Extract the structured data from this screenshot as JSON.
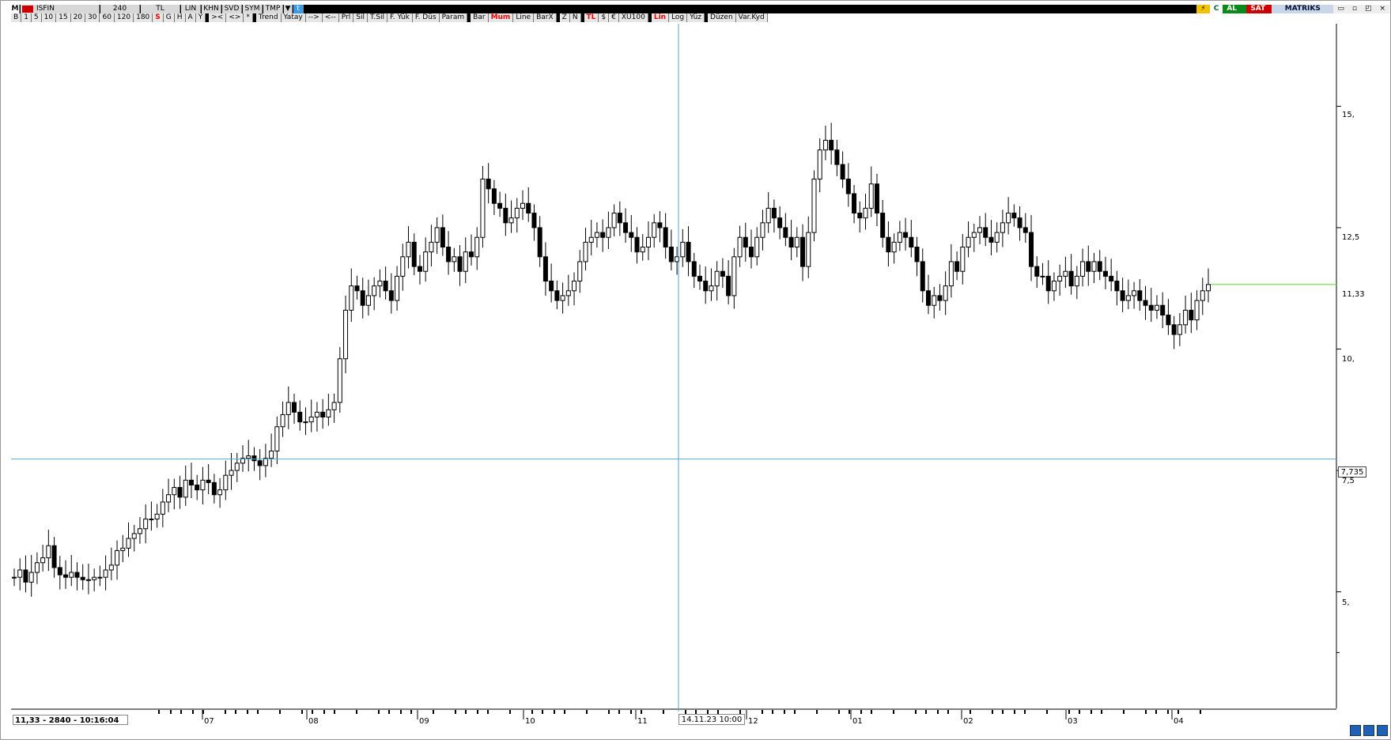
{
  "titlebar": {
    "symbol": "ISFIN",
    "period": "240",
    "currency": "TL",
    "mode": "LIN",
    "btn_khn": "KHN",
    "btn_svd": "SVD",
    "btn_sym": "SYM",
    "btn_tmp": "TMP",
    "btn_m": "M",
    "al": "AL",
    "sat": "SAT",
    "brand": "MATRIKS",
    "c": "C"
  },
  "toolbar": {
    "items": [
      "B",
      "1",
      "5",
      "10",
      "15",
      "20",
      "30",
      "60",
      "120",
      "180",
      "S",
      "G",
      "H",
      "A",
      "Y",
      "><",
      "<>",
      "*",
      "Trend",
      "Yatay",
      "-->",
      "<--",
      "Prl",
      "Sil",
      "T.Sil",
      "F. Yük",
      "F. Düs",
      "Param",
      "Bar",
      "Mum",
      "Line",
      "BarX",
      "Z",
      "N",
      "TL",
      "$",
      "€",
      "XU100",
      "Lin",
      "Log",
      "Yüz",
      "Düzen",
      "Var.Kyd"
    ],
    "highlighted": [
      "S",
      "Mum",
      "TL",
      "Lin"
    ]
  },
  "status": {
    "info": "11,33 - 2840 - 10:16:04",
    "crosshair_time": "14.11.23 10:00",
    "crosshair_price": "7,735"
  },
  "colors": {
    "crosshair": "#5aa6d6",
    "last_price_line": "#66dd44",
    "candle": "#000000"
  },
  "chart_data": {
    "type": "candlestick",
    "y_axis_labels": [
      "15,",
      "12,5",
      "11,33",
      "10,",
      "7,5",
      "5,"
    ],
    "y_ticks": [
      15,
      12.5,
      10,
      7.5,
      5
    ],
    "ylim": [
      2.6,
      16.7
    ],
    "x_axis_labels": [
      "07",
      "08",
      "09",
      "10",
      "11",
      "12",
      "01",
      "02",
      "03",
      "04"
    ],
    "last_price": 11.33,
    "crosshair_price": 7.735,
    "closes": [
      5.3,
      5.45,
      5.2,
      5.4,
      5.6,
      5.7,
      5.95,
      5.5,
      5.35,
      5.3,
      5.4,
      5.3,
      5.25,
      5.25,
      5.3,
      5.3,
      5.45,
      5.55,
      5.85,
      5.9,
      6.1,
      6.2,
      6.3,
      6.5,
      6.5,
      6.6,
      6.85,
      7.0,
      7.15,
      6.95,
      7.3,
      7.2,
      7.1,
      7.3,
      7.25,
      7.0,
      7.1,
      7.4,
      7.5,
      7.65,
      7.75,
      7.8,
      7.7,
      7.6,
      7.75,
      7.9,
      8.4,
      8.65,
      8.9,
      8.7,
      8.5,
      8.5,
      8.6,
      8.7,
      8.6,
      8.75,
      8.9,
      9.8,
      10.8,
      11.3,
      11.2,
      10.9,
      11.1,
      11.3,
      11.4,
      11.2,
      11.0,
      11.5,
      11.9,
      12.2,
      11.7,
      11.6,
      12.0,
      12.2,
      12.5,
      12.1,
      11.8,
      11.9,
      11.6,
      12.0,
      11.9,
      12.3,
      13.5,
      13.3,
      13.0,
      12.9,
      12.6,
      12.7,
      12.9,
      13.0,
      12.8,
      12.5,
      11.9,
      11.4,
      11.2,
      11.0,
      11.1,
      11.2,
      11.4,
      11.8,
      12.2,
      12.3,
      12.4,
      12.3,
      12.5,
      12.8,
      12.6,
      12.4,
      12.3,
      12.0,
      12.1,
      12.3,
      12.6,
      12.5,
      12.1,
      11.8,
      11.9,
      12.2,
      11.8,
      11.5,
      11.4,
      11.2,
      11.3,
      11.6,
      11.5,
      11.1,
      11.9,
      12.3,
      12.1,
      11.9,
      12.3,
      12.6,
      12.9,
      12.7,
      12.5,
      12.3,
      12.1,
      12.3,
      11.7,
      12.4,
      13.5,
      14.1,
      14.3,
      14.1,
      13.8,
      13.5,
      13.2,
      12.8,
      12.7,
      12.9,
      13.4,
      12.8,
      12.3,
      12.0,
      12.2,
      12.4,
      12.3,
      12.1,
      11.8,
      11.2,
      10.9,
      11.1,
      11.0,
      11.3,
      11.8,
      11.6,
      12.1,
      12.3,
      12.4,
      12.5,
      12.3,
      12.2,
      12.4,
      12.6,
      12.8,
      12.7,
      12.5,
      12.4,
      11.7,
      11.5,
      11.5,
      11.2,
      11.4,
      11.5,
      11.6,
      11.3,
      11.5,
      11.8,
      11.6,
      11.8,
      11.6,
      11.5,
      11.4,
      11.2,
      11.0,
      11.1,
      11.2,
      11.0,
      10.9,
      10.8,
      10.9,
      10.7,
      10.5,
      10.3,
      10.5,
      10.8,
      10.6,
      11.0,
      11.2,
      11.33
    ]
  }
}
